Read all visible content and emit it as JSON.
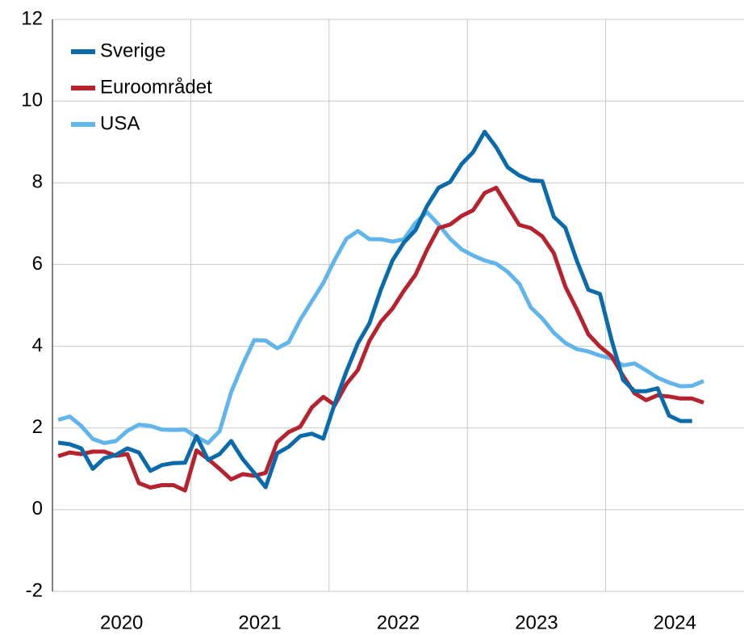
{
  "chart_data": {
    "type": "line",
    "categories": [
      null,
      null,
      null,
      null,
      null,
      null,
      "2020",
      null,
      null,
      null,
      null,
      null,
      null,
      null,
      null,
      null,
      null,
      null,
      "2021",
      null,
      null,
      null,
      null,
      null,
      null,
      null,
      null,
      null,
      null,
      null,
      "2022",
      null,
      null,
      null,
      null,
      null,
      null,
      null,
      null,
      null,
      null,
      null,
      "2023",
      null,
      null,
      null,
      null,
      null,
      null,
      null,
      null,
      null,
      null,
      null,
      "2024",
      null,
      null,
      null,
      null,
      null
    ],
    "series": [
      {
        "name": "Sverige",
        "color": "#0b6aa9",
        "values": [
          1.64,
          1.6,
          1.5,
          1.0,
          1.26,
          1.34,
          1.5,
          1.4,
          0.95,
          1.09,
          1.14,
          1.15,
          1.8,
          1.22,
          1.36,
          1.68,
          1.24,
          0.9,
          0.55,
          1.38,
          1.54,
          1.8,
          1.86,
          1.74,
          2.6,
          3.38,
          4.07,
          4.56,
          5.39,
          6.1,
          6.54,
          6.84,
          7.43,
          7.88,
          8.02,
          8.46,
          8.75,
          9.25,
          8.87,
          8.38,
          8.18,
          8.06,
          8.04,
          7.17,
          6.9,
          6.09,
          5.38,
          5.28,
          4.17,
          3.18,
          2.9,
          2.9,
          2.97,
          2.3,
          2.17,
          2.17,
          null,
          null,
          null,
          null
        ]
      },
      {
        "name": "Euroområdet",
        "color": "#b5232f",
        "values": [
          1.31,
          1.4,
          1.36,
          1.42,
          1.42,
          1.32,
          1.36,
          0.65,
          0.54,
          0.6,
          0.6,
          0.47,
          1.45,
          1.24,
          1.0,
          0.74,
          0.87,
          0.83,
          0.9,
          1.65,
          1.9,
          2.03,
          2.5,
          2.76,
          2.56,
          3.07,
          3.42,
          4.13,
          4.6,
          4.92,
          5.36,
          5.75,
          6.36,
          6.89,
          6.98,
          7.19,
          7.33,
          7.75,
          7.88,
          7.42,
          6.97,
          6.89,
          6.69,
          6.28,
          5.46,
          4.9,
          4.29,
          3.99,
          3.76,
          3.28,
          2.85,
          2.68,
          2.8,
          2.77,
          2.72,
          2.72,
          2.62,
          null,
          null,
          null
        ]
      },
      {
        "name": "USA",
        "color": "#62b5ea",
        "values": [
          2.2,
          2.28,
          2.05,
          1.73,
          1.63,
          1.68,
          1.93,
          2.08,
          2.05,
          1.96,
          1.95,
          1.96,
          1.78,
          1.63,
          1.92,
          2.87,
          3.55,
          4.15,
          4.14,
          3.95,
          4.1,
          4.65,
          5.1,
          5.55,
          6.12,
          6.63,
          6.82,
          6.62,
          6.62,
          6.56,
          6.62,
          7.02,
          7.28,
          6.98,
          6.63,
          6.37,
          6.22,
          6.1,
          6.02,
          5.82,
          5.53,
          4.95,
          4.68,
          4.33,
          4.08,
          3.93,
          3.87,
          3.77,
          3.7,
          3.53,
          3.58,
          3.41,
          3.23,
          3.11,
          3.02,
          3.03,
          3.15,
          null,
          null,
          null
        ]
      }
    ],
    "ylim": [
      -2,
      12
    ],
    "yticks": [
      -2,
      0,
      2,
      4,
      6,
      8,
      10,
      12
    ],
    "grid": true,
    "legend": "upper left"
  }
}
